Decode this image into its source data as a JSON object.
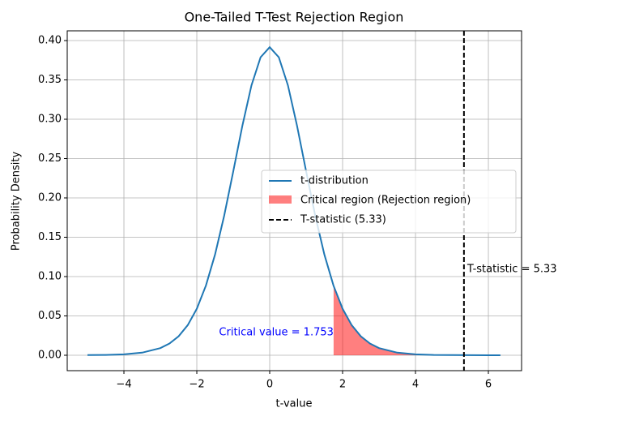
{
  "chart_data": {
    "type": "line",
    "title": "One-Tailed T-Test Rejection Region",
    "xlabel": "t-value",
    "ylabel": "Probability Density",
    "xlim": [
      -5.556,
      6.911
    ],
    "ylim": [
      -0.0196,
      0.4124
    ],
    "xticks": [
      {
        "value": -4,
        "label": "−4"
      },
      {
        "value": -2,
        "label": "−2"
      },
      0,
      2,
      4,
      6
    ],
    "yticks": [
      {
        "value": 0,
        "label": "0.00"
      },
      {
        "value": 0.05,
        "label": "0.05"
      },
      {
        "value": 0.1,
        "label": "0.10"
      },
      {
        "value": 0.15,
        "label": "0.15"
      },
      {
        "value": 0.2,
        "label": "0.20"
      },
      {
        "value": 0.25,
        "label": "0.25"
      },
      {
        "value": 0.3,
        "label": "0.30"
      },
      {
        "value": 0.35,
        "label": "0.35"
      },
      {
        "value": 0.4,
        "label": "0.40"
      }
    ],
    "grid": true,
    "legend": "center right",
    "series": [
      {
        "name": "t-distribution",
        "color": "#1f77b4",
        "x": [
          -5,
          -4.5,
          -4,
          -3.5,
          -3,
          -2.75,
          -2.5,
          -2.25,
          -2,
          -1.75,
          -1.5,
          -1.25,
          -1,
          -0.75,
          -0.5,
          -0.25,
          0,
          0.25,
          0.5,
          0.75,
          1,
          1.25,
          1.5,
          1.75,
          2,
          2.25,
          2.5,
          2.75,
          3,
          3.5,
          4,
          4.5,
          5,
          5.5,
          6,
          6.33
        ],
        "values": [
          0.0002,
          0.0004,
          0.0012,
          0.0033,
          0.0091,
          0.0149,
          0.0241,
          0.0382,
          0.0591,
          0.0886,
          0.128,
          0.1772,
          0.2337,
          0.2917,
          0.3431,
          0.3788,
          0.3916,
          0.3788,
          0.3431,
          0.2917,
          0.2337,
          0.1772,
          0.128,
          0.0886,
          0.0591,
          0.0382,
          0.0241,
          0.0149,
          0.0091,
          0.0033,
          0.0012,
          0.0004,
          0.0002,
          0.0001,
          0,
          0
        ]
      }
    ],
    "critical_region": {
      "name": "Critical region (Rejection region)",
      "color": "#ff0000",
      "x": [
        1.753,
        2,
        2.25,
        2.5,
        2.75,
        3,
        3.5,
        4,
        4.5,
        5,
        5.5,
        6,
        6.33
      ],
      "values": [
        0.0882,
        0.0591,
        0.0382,
        0.0241,
        0.0149,
        0.0091,
        0.0033,
        0.0012,
        0.0004,
        0.0002,
        0.0001,
        0,
        0
      ]
    },
    "vline": {
      "name": "T-statistic (5.33)",
      "x": 5.33,
      "color": "#000000"
    },
    "annotations": [
      {
        "text": "Critical value = 1.753",
        "color": "#0000ff"
      },
      {
        "text": "T-statistic = 5.33",
        "color": "#000000"
      }
    ]
  }
}
